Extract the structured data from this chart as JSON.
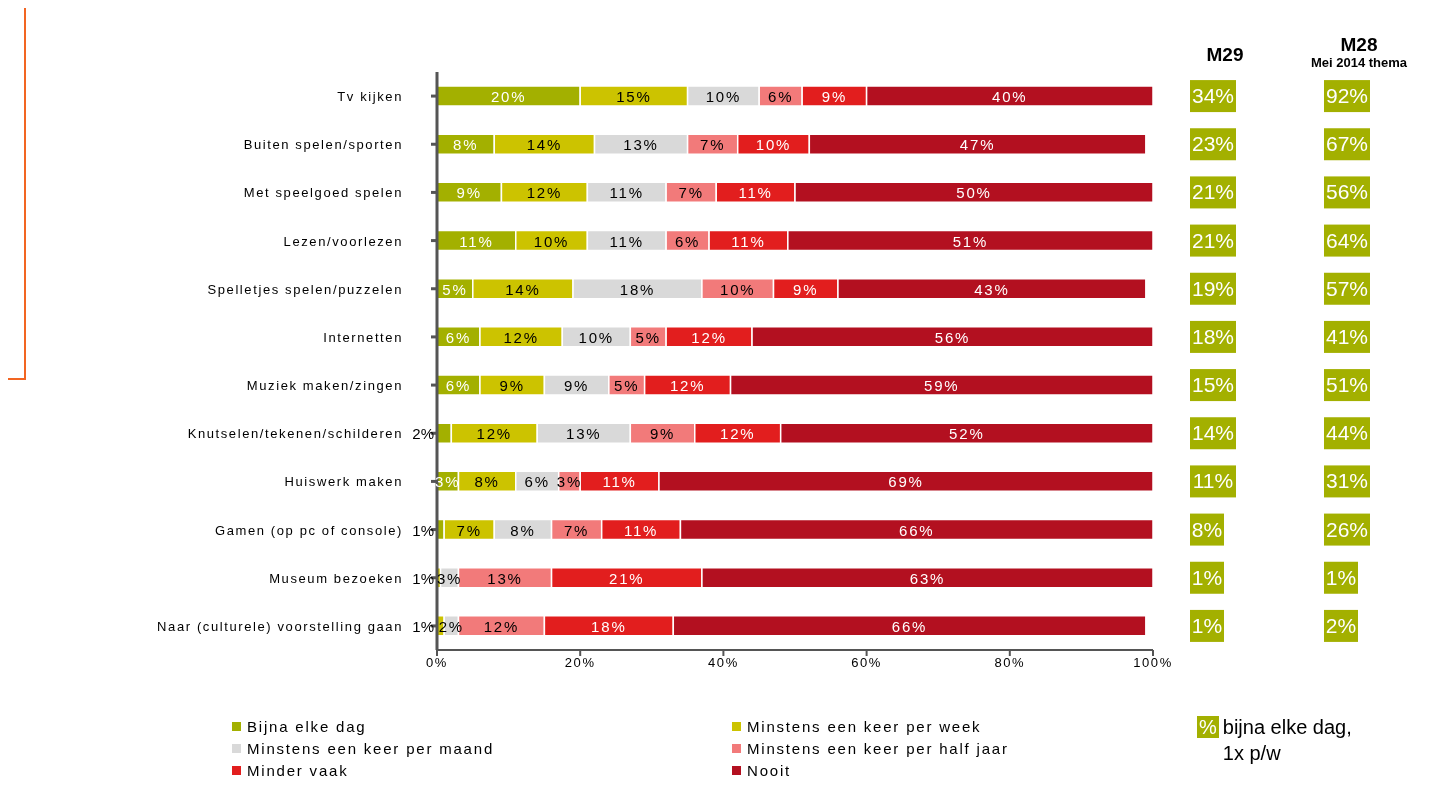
{
  "chart_data": [
    {
      "type": "bar",
      "orientation": "horizontal",
      "stacked": true,
      "categories": [
        "Tv kijken",
        "Buiten spelen/sporten",
        "Met speelgoed spelen",
        "Lezen/voorlezen",
        "Spelletjes spelen/puzzelen",
        "Internetten",
        "Muziek maken/zingen",
        "Knutselen/tekenen/schilderen",
        "Huiswerk maken",
        "Gamen (op pc of console)",
        "Museum bezoeken",
        "Naar (culturele) voorstelling gaan"
      ],
      "series": [
        {
          "name": "Bijna elke dag",
          "color": "#a3b000",
          "values": [
            20,
            8,
            9,
            11,
            5,
            6,
            6,
            2,
            3,
            1,
            null,
            null
          ],
          "value_labels": [
            "20%",
            "8%",
            "9%",
            "11%",
            "5%",
            "6%",
            "6%",
            "2%",
            "3%",
            "1%",
            null,
            null
          ]
        },
        {
          "name": "Minstens een keer per week",
          "color": "#ccc300",
          "values": [
            15,
            14,
            12,
            10,
            14,
            11.5,
            9,
            12,
            8,
            7,
            0.5,
            1
          ],
          "value_labels": [
            "15%",
            "14%",
            "12%",
            "10%",
            "14%",
            "12%",
            "9%",
            "12%",
            "8%",
            "7%",
            "1%",
            "1%"
          ]
        },
        {
          "name": "Minstens een keer per maand",
          "color": "#d9d9d9",
          "values": [
            10,
            13,
            11,
            11,
            18,
            9.5,
            9,
            13,
            6,
            8,
            2.5,
            2
          ],
          "value_labels": [
            "10%",
            "13%",
            "11%",
            "11%",
            "18%",
            "10%",
            "9%",
            "13%",
            "6%",
            "8%",
            "3%",
            "2%"
          ]
        },
        {
          "name": "Minstens een keer per half jaar",
          "color": "#f27a7a",
          "values": [
            6,
            7,
            7,
            6,
            10,
            5,
            5,
            9,
            3,
            7,
            13,
            12
          ],
          "value_labels": [
            "6%",
            "7%",
            "7%",
            "6%",
            "10%",
            "5%",
            "5%",
            "9%",
            "3%",
            "7%",
            "13%",
            "12%"
          ]
        },
        {
          "name": "Minder vaak",
          "color": "#e21e1e",
          "values": [
            9,
            10,
            11,
            11,
            9,
            12,
            12,
            12,
            11,
            11,
            21,
            18
          ],
          "value_labels": [
            "9%",
            "10%",
            "11%",
            "11%",
            "9%",
            "12%",
            "12%",
            "12%",
            "11%",
            "11%",
            "21%",
            "18%"
          ]
        },
        {
          "name": "Nooit",
          "color": "#b31020",
          "values": [
            40,
            47,
            50,
            51,
            43,
            56,
            59,
            52,
            69,
            66,
            63,
            66
          ],
          "value_labels": [
            "40%",
            "47%",
            "50%",
            "51%",
            "43%",
            "56%",
            "59%",
            "52%",
            "69%",
            "66%",
            "63%",
            "66%"
          ]
        }
      ],
      "xlim": [
        0,
        100
      ],
      "xticks": [
        {
          "value": 0,
          "label": "0%"
        },
        {
          "value": 20,
          "label": "20%"
        },
        {
          "value": 40,
          "label": "40%"
        },
        {
          "value": 60,
          "label": "60%"
        },
        {
          "value": 80,
          "label": "80%"
        },
        {
          "value": 100,
          "label": "100%"
        }
      ],
      "grid": false,
      "legend": "bottom"
    },
    {
      "type": "other",
      "title": "M29",
      "values": [
        34,
        23,
        21,
        21,
        19,
        18,
        15,
        14,
        11,
        8,
        1,
        1
      ],
      "value_labels": [
        "34%",
        "23%",
        "21%",
        "21%",
        "19%",
        "18%",
        "15%",
        "14%",
        "11%",
        "8%",
        "1%",
        "1%"
      ],
      "colors": [
        "#a3b000",
        "#a3b000",
        "#a3b000",
        "#a3b000",
        "#a3b000",
        "#a3b000",
        "#a3b000",
        "#a3b000",
        "#a3b000",
        "#a3b000",
        "#a3b000",
        "#a3b000"
      ],
      "annotations": [
        "%",
        "bijna elke dag, 1x p/w"
      ]
    },
    {
      "type": "other",
      "title": "M28",
      "subtitle": "Mei 2014 thema",
      "values": [
        92,
        67,
        56,
        64,
        57,
        41,
        51,
        44,
        31,
        26,
        1,
        2
      ],
      "value_labels": [
        "92%",
        "67%",
        "56%",
        "64%",
        "57%",
        "41%",
        "51%",
        "44%",
        "31%",
        "26%",
        "1%",
        "2%"
      ],
      "colors": [
        "#a3b000",
        "#a3b000",
        "#a3b000",
        "#a3b000",
        "#a3b000",
        "#a3b000",
        "#a3b000",
        "#a3b000",
        "#a3b000",
        "#a3b000",
        "#a3b000",
        "#a3b000"
      ]
    }
  ]
}
